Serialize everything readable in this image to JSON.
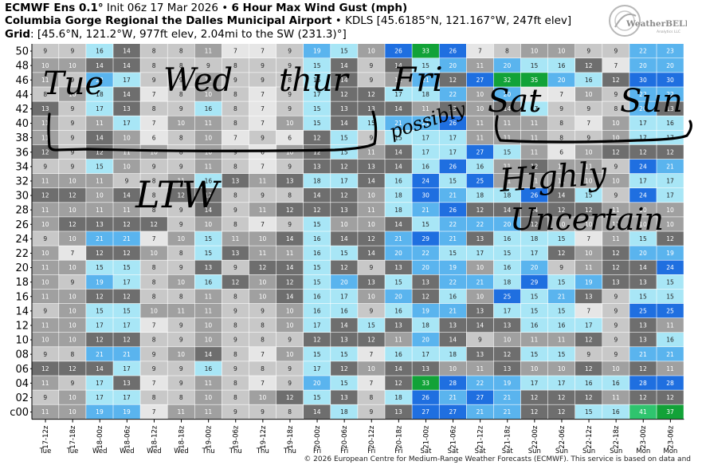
{
  "header": {
    "line1_bold": "ECMWF Ens 0.1°",
    "line1_mid": " Init 06z 17 Mar 2026 • ",
    "line1_bold2": "6 Hour Max Wind Gust (mph)",
    "line2_bold": "Columbia Gorge Regional the Dalles Municipal Airport",
    "line2_rest": " • KDLS [45.6185°N, 121.167°W, 247ft elev]",
    "line3_bold": "Grid",
    "line3_rest": ": [45.6°N, 121.2°W, 977ft elev, 2.04mi to the SW (231.3)°]"
  },
  "logo": {
    "text_main": "WeatherBELL",
    "text_sub": "Analytics LLC"
  },
  "credit": "© 2026 European Centre for Medium-Range Weather Forecasts (ECMWF). This service is based on data and",
  "annotations": [
    "Tue",
    "Wed",
    "thur",
    "Fri",
    "Sat",
    "Sun",
    "possibly",
    "LTW",
    "Highly",
    "Uncertain"
  ],
  "colors": {
    "very_light": "#e6e6e6",
    "light_gray": "#c8c8c8",
    "gray": "#a0a0a0",
    "dark_gray": "#6e6e6e",
    "light_blue": "#a8e6f6",
    "sky_blue": "#5ab4ee",
    "blue": "#1f6fe0",
    "green_light": "#2fc46e",
    "green_dark": "#12a238"
  },
  "chart_data": {
    "type": "heatmap",
    "y_labels": [
      "50",
      "48",
      "46",
      "44",
      "42",
      "40",
      "38",
      "36",
      "34",
      "32",
      "30",
      "28",
      "26",
      "24",
      "22",
      "20",
      "18",
      "16",
      "14",
      "12",
      "10",
      "08",
      "06",
      "04",
      "02",
      "c00"
    ],
    "x_labels": [
      "17-12z",
      "17-18z",
      "18-00z",
      "18-06z",
      "18-12z",
      "18-18z",
      "19-00z",
      "19-06z",
      "19-12z",
      "19-18z",
      "20-00z",
      "20-06z",
      "20-12z",
      "20-18z",
      "21-00z",
      "21-06z",
      "21-12z",
      "21-18z",
      "22-00z",
      "22-06z",
      "22-12z",
      "22-18z",
      "23-00z",
      "23-06z"
    ],
    "day_labels": [
      "Tue",
      "Tue",
      "Wed",
      "Wed",
      "Wed",
      "Wed",
      "Thu",
      "Thu",
      "Thu",
      "Thu",
      "Fri",
      "Fri",
      "Fri",
      "Fri",
      "Sat",
      "Sat",
      "Sat",
      "Sat",
      "Sun",
      "Sun",
      "Sun",
      "Sun",
      "Mon",
      "Mon"
    ],
    "rows": [
      [
        9,
        9,
        16,
        14,
        8,
        8,
        11,
        7,
        7,
        9,
        19,
        15,
        10,
        26,
        33,
        26,
        7,
        8,
        10,
        10,
        9,
        9,
        22,
        23
      ],
      [
        10,
        10,
        14,
        14,
        8,
        8,
        9,
        8,
        9,
        9,
        15,
        14,
        9,
        14,
        15,
        20,
        11,
        20,
        15,
        16,
        12,
        7,
        20,
        20
      ],
      [
        11,
        9,
        22,
        17,
        9,
        9,
        11,
        9,
        9,
        8,
        15,
        14,
        9,
        11,
        21,
        12,
        27,
        32,
        35,
        20,
        16,
        12,
        30,
        30
      ],
      [
        8,
        10,
        18,
        14,
        7,
        8,
        10,
        8,
        7,
        9,
        17,
        12,
        12,
        17,
        18,
        22,
        10,
        20,
        7,
        7,
        10,
        9,
        22,
        22
      ],
      [
        13,
        9,
        17,
        13,
        8,
        9,
        16,
        8,
        7,
        9,
        15,
        13,
        13,
        14,
        11,
        13,
        10,
        14,
        17,
        9,
        9,
        8,
        20,
        13
      ],
      [
        11,
        9,
        11,
        17,
        7,
        10,
        11,
        8,
        7,
        10,
        15,
        14,
        15,
        21,
        21,
        26,
        11,
        11,
        11,
        8,
        7,
        10,
        17,
        16
      ],
      [
        11,
        9,
        14,
        10,
        6,
        8,
        10,
        7,
        9,
        6,
        12,
        15,
        9,
        15,
        17,
        17,
        11,
        11,
        11,
        8,
        9,
        10,
        17,
        17
      ],
      [
        12,
        9,
        12,
        11,
        10,
        8,
        10,
        9,
        6,
        10,
        12,
        15,
        11,
        14,
        17,
        17,
        27,
        15,
        11,
        6,
        10,
        12,
        12,
        12
      ],
      [
        9,
        9,
        15,
        10,
        9,
        9,
        11,
        8,
        7,
        9,
        13,
        12,
        13,
        14,
        16,
        26,
        16,
        11,
        12,
        11,
        11,
        9,
        24,
        21
      ],
      [
        11,
        10,
        11,
        9,
        8,
        11,
        16,
        13,
        11,
        13,
        18,
        17,
        14,
        16,
        24,
        15,
        25,
        11,
        11,
        11,
        10,
        10,
        17,
        17
      ],
      [
        12,
        12,
        10,
        14,
        8,
        12,
        12,
        8,
        9,
        8,
        14,
        12,
        10,
        18,
        30,
        21,
        18,
        18,
        26,
        14,
        15,
        9,
        24,
        17
      ],
      [
        11,
        10,
        11,
        11,
        8,
        9,
        14,
        9,
        11,
        12,
        12,
        13,
        11,
        18,
        21,
        26,
        12,
        14,
        14,
        12,
        12,
        11,
        10,
        10
      ],
      [
        10,
        12,
        13,
        12,
        12,
        9,
        10,
        8,
        7,
        9,
        15,
        10,
        10,
        14,
        15,
        22,
        22,
        20,
        12,
        10,
        10,
        11,
        10,
        10
      ],
      [
        9,
        10,
        21,
        21,
        7,
        10,
        15,
        11,
        10,
        14,
        16,
        14,
        12,
        21,
        29,
        21,
        13,
        16,
        18,
        15,
        7,
        11,
        15,
        12
      ],
      [
        10,
        7,
        12,
        12,
        10,
        8,
        15,
        13,
        11,
        11,
        16,
        15,
        14,
        20,
        22,
        15,
        17,
        15,
        17,
        12,
        10,
        12,
        20,
        19
      ],
      [
        11,
        10,
        15,
        15,
        8,
        9,
        13,
        9,
        12,
        14,
        15,
        12,
        9,
        13,
        20,
        19,
        10,
        16,
        20,
        9,
        11,
        12,
        14,
        24
      ],
      [
        10,
        9,
        19,
        17,
        8,
        10,
        16,
        12,
        10,
        12,
        15,
        20,
        13,
        15,
        13,
        22,
        21,
        18,
        29,
        15,
        19,
        13,
        13,
        15
      ],
      [
        11,
        10,
        12,
        12,
        8,
        8,
        11,
        8,
        10,
        14,
        16,
        17,
        10,
        20,
        12,
        16,
        10,
        25,
        15,
        21,
        13,
        9,
        15,
        15
      ],
      [
        9,
        10,
        15,
        15,
        10,
        11,
        11,
        9,
        9,
        10,
        16,
        16,
        9,
        16,
        19,
        21,
        13,
        17,
        15,
        15,
        7,
        9,
        25,
        25
      ],
      [
        11,
        10,
        17,
        17,
        7,
        9,
        10,
        8,
        8,
        10,
        17,
        14,
        15,
        13,
        18,
        13,
        14,
        13,
        16,
        16,
        17,
        9,
        13,
        11
      ],
      [
        10,
        10,
        12,
        12,
        8,
        9,
        10,
        9,
        8,
        9,
        12,
        13,
        12,
        11,
        20,
        14,
        9,
        10,
        11,
        11,
        12,
        9,
        13,
        16
      ],
      [
        9,
        8,
        21,
        21,
        9,
        10,
        14,
        8,
        7,
        10,
        15,
        15,
        7,
        16,
        17,
        18,
        13,
        12,
        15,
        15,
        9,
        9,
        21,
        21
      ],
      [
        12,
        12,
        14,
        17,
        9,
        9,
        16,
        9,
        8,
        9,
        17,
        12,
        10,
        14,
        13,
        10,
        11,
        13,
        10,
        10,
        12,
        10,
        12,
        11
      ],
      [
        11,
        9,
        17,
        13,
        7,
        9,
        11,
        8,
        7,
        9,
        20,
        15,
        7,
        12,
        33,
        28,
        22,
        19,
        17,
        17,
        16,
        16,
        28,
        28
      ],
      [
        9,
        10,
        17,
        17,
        8,
        8,
        10,
        8,
        10,
        12,
        15,
        13,
        8,
        18,
        26,
        21,
        27,
        21,
        12,
        12,
        12,
        11,
        12,
        12
      ],
      [
        11,
        10,
        19,
        19,
        7,
        11,
        11,
        9,
        9,
        8,
        14,
        18,
        9,
        13,
        27,
        27,
        21,
        21,
        12,
        12,
        15,
        16,
        41,
        37
      ]
    ]
  }
}
